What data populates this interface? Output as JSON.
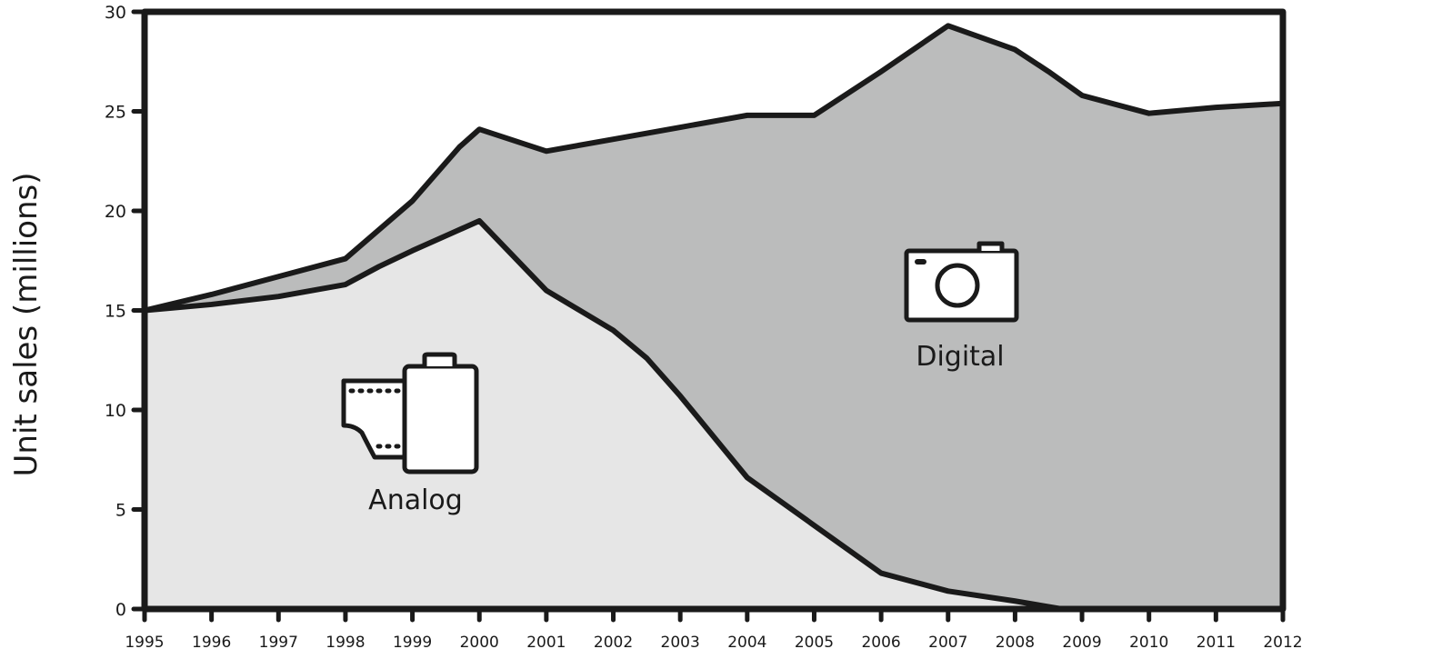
{
  "chart_data": {
    "type": "area",
    "stacked": true,
    "title": "",
    "xlabel": "",
    "ylabel": "Unit sales (millions)",
    "xlim": [
      1995,
      2012
    ],
    "ylim": [
      0,
      30
    ],
    "x_ticks": [
      "1995",
      "1996",
      "1997",
      "1998",
      "1999",
      "2000",
      "2001",
      "2002",
      "2003",
      "2004",
      "2005",
      "2006",
      "2007",
      "2008",
      "2009",
      "2010",
      "2011",
      "2012"
    ],
    "y_ticks": [
      "0",
      "5",
      "10",
      "15",
      "20",
      "25",
      "30"
    ],
    "grid": false,
    "legend": "none (labels drawn inside areas)",
    "series": [
      {
        "name": "Analog",
        "color": "#e6e6e6",
        "x": [
          1995,
          1996,
          1997,
          1998,
          1998.5,
          1999,
          2000,
          2001,
          2002,
          2002.5,
          2003,
          2004,
          2005,
          2006,
          2007,
          2008,
          2008.7,
          2009,
          2010,
          2011,
          2012
        ],
        "values": [
          15.0,
          15.3,
          15.7,
          16.3,
          17.2,
          18.0,
          19.5,
          16.0,
          14.0,
          12.6,
          10.7,
          6.6,
          4.2,
          1.8,
          0.9,
          0.4,
          0.0,
          0.0,
          0.0,
          0.0,
          0.0
        ]
      },
      {
        "name": "Digital",
        "color": "#bbbcbc",
        "total_x": [
          1995,
          1996,
          1997,
          1998,
          1999,
          1999.7,
          2000,
          2001,
          2002,
          2003,
          2004,
          2005,
          2006,
          2007,
          2008,
          2008.5,
          2009,
          2010,
          2011,
          2012
        ],
        "total_values": [
          15.0,
          15.8,
          16.7,
          17.6,
          20.5,
          23.2,
          24.1,
          23.0,
          23.6,
          24.2,
          24.8,
          24.8,
          27.0,
          29.3,
          28.1,
          27.0,
          25.8,
          24.9,
          25.2,
          25.4
        ]
      }
    ],
    "annotations": [
      {
        "text": "Analog",
        "icon": "film-canister-icon"
      },
      {
        "text": "Digital",
        "icon": "camera-icon"
      }
    ]
  }
}
